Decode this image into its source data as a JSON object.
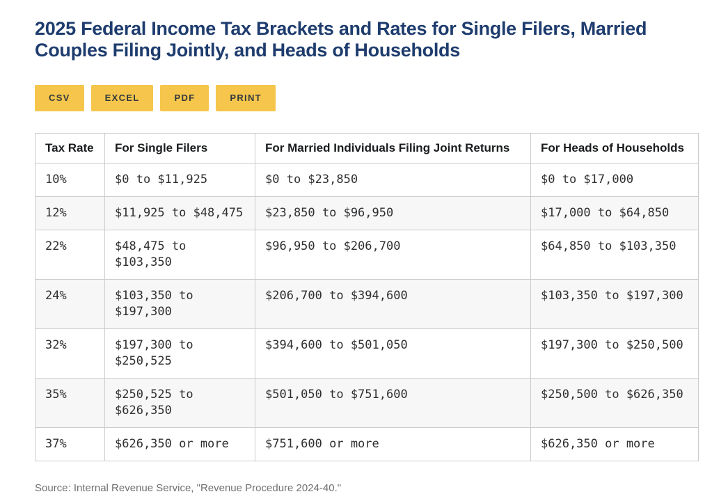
{
  "chart_data": {
    "type": "table",
    "title": "2025 Federal Income Tax Brackets and Rates for Single Filers, Married Couples Filing Jointly, and Heads of Households",
    "columns": [
      "Tax Rate",
      "For Single Filers",
      "For Married Individuals Filing Joint Returns",
      "For Heads of Households"
    ],
    "rows": [
      [
        "10%",
        "$0 to $11,925",
        "$0 to $23,850",
        "$0 to $17,000"
      ],
      [
        "12%",
        "$11,925 to $48,475",
        "$23,850 to $96,950",
        "$17,000 to $64,850"
      ],
      [
        "22%",
        "$48,475 to $103,350",
        "$96,950 to $206,700",
        "$64,850 to $103,350"
      ],
      [
        "24%",
        "$103,350 to $197,300",
        "$206,700 to $394,600",
        "$103,350 to $197,300"
      ],
      [
        "32%",
        "$197,300 to $250,525",
        "$394,600 to $501,050",
        "$197,300 to $250,500"
      ],
      [
        "35%",
        "$250,525 to $626,350",
        "$501,050 to $751,600",
        "$250,500 to $626,350"
      ],
      [
        "37%",
        "$626,350 or more",
        "$751,600 or more",
        "$626,350 or more"
      ]
    ],
    "source": "Source: Internal Revenue Service, \"Revenue Procedure 2024-40.\""
  },
  "toolbar": {
    "buttons": [
      {
        "label": "CSV"
      },
      {
        "label": "EXCEL"
      },
      {
        "label": "PDF"
      },
      {
        "label": "PRINT"
      }
    ]
  },
  "colors": {
    "accent_yellow": "#F5C64B",
    "title_navy": "#1E3C6E",
    "alt_row": "#F7F7F7",
    "table_border": "#CCCCCC",
    "button_text": "#34393E",
    "cell_text": "#2E2F31",
    "source_gray": "#6F6F6F"
  }
}
